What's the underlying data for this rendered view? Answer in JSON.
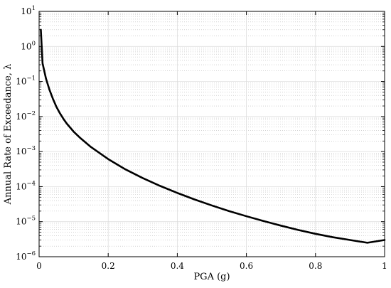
{
  "chart_data": {
    "type": "line",
    "title": "",
    "xlabel": "PGA (g)",
    "ylabel": "Annual Rate of Exceedance, λ",
    "x_scale": "linear",
    "y_scale": "log",
    "xlim": [
      0,
      1
    ],
    "ylim": [
      1e-06,
      10
    ],
    "grid": true,
    "minor_grid": true,
    "x_ticks": [
      {
        "value": 0,
        "label": "0"
      },
      {
        "value": 0.2,
        "label": "0.2"
      },
      {
        "value": 0.4,
        "label": "0.4"
      },
      {
        "value": 0.6,
        "label": "0.6"
      },
      {
        "value": 0.8,
        "label": "0.8"
      },
      {
        "value": 1,
        "label": "1"
      }
    ],
    "y_ticks": [
      {
        "value": 1e-06,
        "base": "10",
        "exp": "−6"
      },
      {
        "value": 1e-05,
        "base": "10",
        "exp": "−5"
      },
      {
        "value": 0.0001,
        "base": "10",
        "exp": "−4"
      },
      {
        "value": 0.001,
        "base": "10",
        "exp": "−3"
      },
      {
        "value": 0.01,
        "base": "10",
        "exp": "−2"
      },
      {
        "value": 0.1,
        "base": "10",
        "exp": "−1"
      },
      {
        "value": 1,
        "base": "10",
        "exp": "0"
      },
      {
        "value": 10,
        "base": "10",
        "exp": "1"
      }
    ],
    "series": [
      {
        "color": "#000000",
        "x": [
          0.005,
          0.01,
          0.02,
          0.03,
          0.04,
          0.05,
          0.06,
          0.07,
          0.08,
          0.1,
          0.12,
          0.15,
          0.2,
          0.25,
          0.3,
          0.35,
          0.4,
          0.45,
          0.5,
          0.55,
          0.6,
          0.65,
          0.7,
          0.75,
          0.8,
          0.85,
          0.9,
          0.95,
          1.0
        ],
        "y": [
          3.0,
          0.33,
          0.12,
          0.058,
          0.032,
          0.019,
          0.0125,
          0.0087,
          0.0063,
          0.0037,
          0.0024,
          0.00135,
          0.00061,
          0.00031,
          0.000175,
          0.000105,
          6.6e-05,
          4.3e-05,
          2.9e-05,
          2e-05,
          1.43e-05,
          1.04e-05,
          7.7e-06,
          5.8e-06,
          4.5e-06,
          3.6e-06,
          3e-06,
          2.5e-06,
          3e-06
        ]
      }
    ]
  }
}
